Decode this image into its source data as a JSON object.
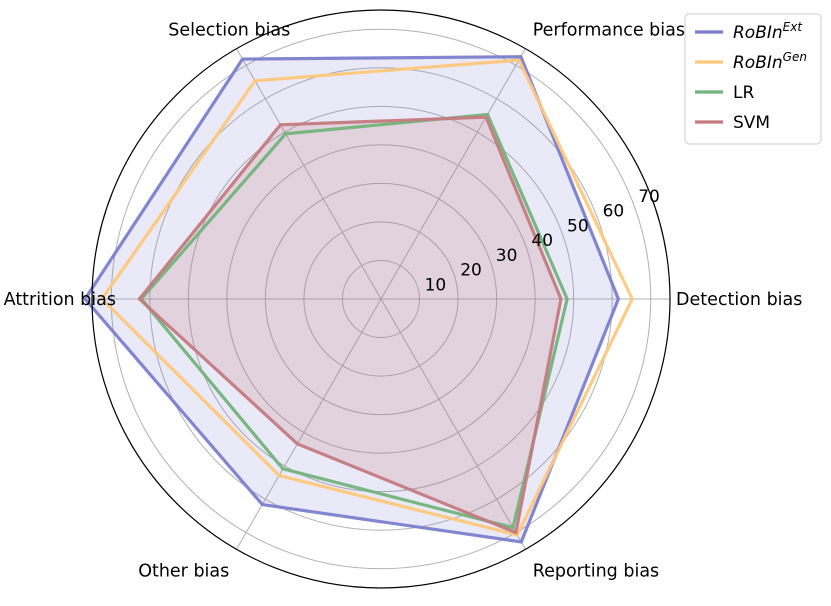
{
  "chart_data": {
    "type": "radar",
    "axes": [
      "Detection bias",
      "Performance bias",
      "Selection bias",
      "Attrition bias",
      "Other bias",
      "Reporting bias"
    ],
    "rlim": [
      0,
      75
    ],
    "rticks": [
      10,
      20,
      30,
      40,
      50,
      60,
      70
    ],
    "rtick_labels": [
      "10",
      "20",
      "30",
      "40",
      "50",
      "60",
      "70"
    ],
    "series": [
      {
        "name": "RoBIn",
        "name_sup": "Ext",
        "italic": true,
        "color": "#7b7fce",
        "fill_alpha": 0.17,
        "values": [
          61.6,
          72.6,
          71.9,
          76.8,
          61.6,
          72.8
        ]
      },
      {
        "name": "RoBIn",
        "name_sup": "Gen",
        "italic": true,
        "color": "#ffc77a",
        "fill_alpha": 0.0,
        "values": [
          65.2,
          71.6,
          65.4,
          72.4,
          52.9,
          70.7
        ]
      },
      {
        "name": "LR",
        "name_sup": "",
        "italic": false,
        "color": "#72b47a",
        "fill_alpha": 0.0,
        "values": [
          48.3,
          55.3,
          49.5,
          62.2,
          50.9,
          68.5
        ]
      },
      {
        "name": "SVM",
        "name_sup": "",
        "italic": false,
        "color": "#c47a7f",
        "fill_alpha": 0.2,
        "values": [
          46.7,
          54.5,
          52.2,
          62.7,
          43.4,
          70.0
        ]
      }
    ],
    "legend_location": "top-right",
    "grid": true
  }
}
